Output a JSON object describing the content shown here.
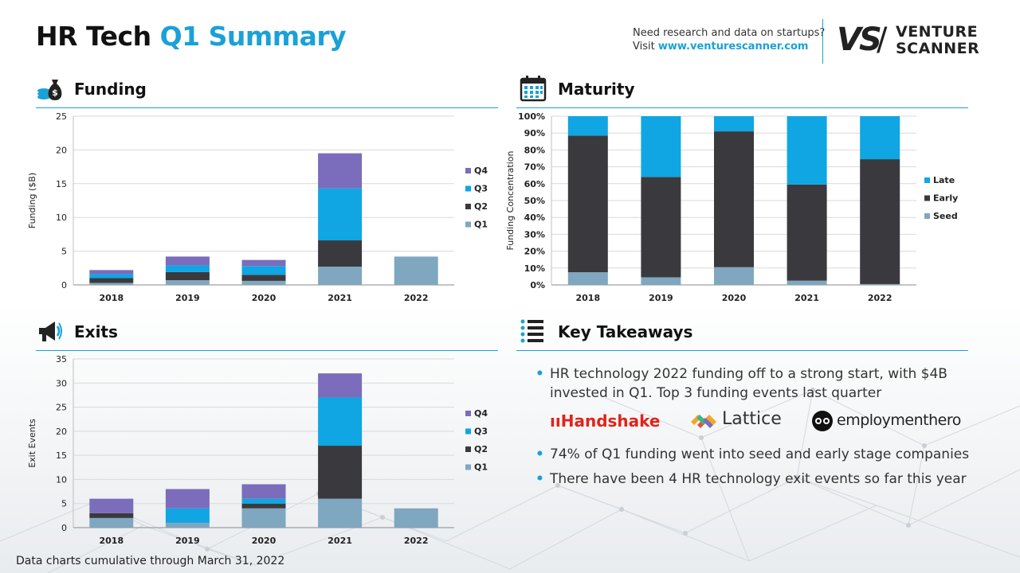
{
  "page": {
    "title_part1": "HR Tech",
    "title_part2": "Q1 Summary",
    "promo_line1": "Need research and data on startups?",
    "promo_visit": "Visit",
    "promo_link": "www.venturescanner.com",
    "logo_mark": "VS",
    "logo_word_1": "VENTURE",
    "logo_word_2": "SCANNER",
    "footnote": "Data charts cumulative through March 31, 2022"
  },
  "sections": {
    "funding": "Funding",
    "maturity": "Maturity",
    "exits": "Exits",
    "takeaways": "Key Takeaways"
  },
  "takeaways": {
    "item1": "HR technology 2022 funding off to a strong start, with $4B invested in Q1. Top 3 funding events last quarter",
    "logo_handshake": "Handshake",
    "logo_lattice": "Lattice",
    "logo_employmenthero": "employmenthero",
    "item2": "74% of Q1 funding went into seed and early stage companies",
    "item3": "There have been 4 HR technology exit events so far this year"
  },
  "colors": {
    "accent": "#1aa1d6",
    "q1": "#7fa7bf",
    "q2": "#3a3a3e",
    "q3": "#0fa6e3",
    "q4": "#7b6cbc",
    "seed": "#7fa7bf",
    "early": "#3a3a3e",
    "late": "#0fa6e3"
  },
  "chart_data": [
    {
      "id": "funding",
      "type": "bar",
      "stacked": true,
      "ylabel": "Funding ($B)",
      "categories": [
        "2018",
        "2019",
        "2020",
        "2021",
        "2022"
      ],
      "ylim": [
        0,
        25
      ],
      "yticks": [
        0,
        5,
        10,
        15,
        20,
        25
      ],
      "grid": true,
      "legend_position": "right",
      "series": [
        {
          "name": "Q1",
          "values": [
            0.3,
            0.7,
            0.6,
            2.7,
            4.2
          ]
        },
        {
          "name": "Q2",
          "values": [
            0.7,
            1.2,
            0.9,
            3.9,
            0
          ]
        },
        {
          "name": "Q3",
          "values": [
            0.6,
            1.0,
            1.3,
            7.7,
            0
          ]
        },
        {
          "name": "Q4",
          "values": [
            0.6,
            1.3,
            0.9,
            5.2,
            0
          ]
        }
      ]
    },
    {
      "id": "maturity",
      "type": "bar",
      "stacked": true,
      "ylabel": "Funding Concentration",
      "categories": [
        "2018",
        "2019",
        "2020",
        "2021",
        "2022"
      ],
      "ylim": [
        0,
        100
      ],
      "yticks": [
        "0%",
        "10%",
        "20%",
        "30%",
        "40%",
        "50%",
        "60%",
        "70%",
        "80%",
        "90%",
        "100%"
      ],
      "grid": true,
      "legend_position": "right",
      "series": [
        {
          "name": "Seed",
          "values": [
            7.5,
            4.5,
            10.5,
            2.5,
            0.5
          ]
        },
        {
          "name": "Early",
          "values": [
            81,
            59.5,
            80.5,
            57,
            74
          ]
        },
        {
          "name": "Late",
          "values": [
            11.5,
            36,
            9,
            40.5,
            25.5
          ]
        }
      ]
    },
    {
      "id": "exits",
      "type": "bar",
      "stacked": true,
      "ylabel": "Exit Events",
      "categories": [
        "2018",
        "2019",
        "2020",
        "2021",
        "2022"
      ],
      "ylim": [
        0,
        35
      ],
      "yticks": [
        0,
        5,
        10,
        15,
        20,
        25,
        30,
        35
      ],
      "grid": true,
      "legend_position": "right",
      "series": [
        {
          "name": "Q1",
          "values": [
            2,
            1,
            4,
            6,
            4
          ]
        },
        {
          "name": "Q2",
          "values": [
            1,
            0,
            1,
            11,
            0
          ]
        },
        {
          "name": "Q3",
          "values": [
            0,
            3,
            1,
            10,
            0
          ]
        },
        {
          "name": "Q4",
          "values": [
            3,
            4,
            3,
            5,
            0
          ]
        }
      ]
    }
  ]
}
